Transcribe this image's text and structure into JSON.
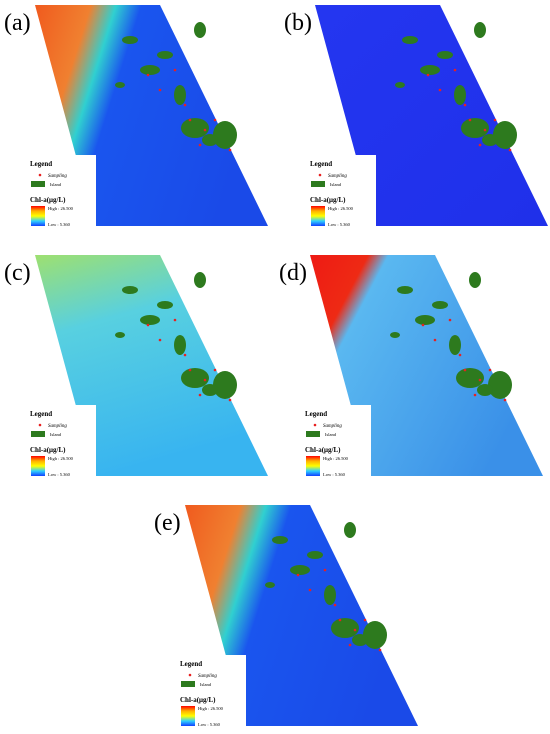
{
  "panels": [
    {
      "label": "(a)",
      "legend": {
        "title": "Legend",
        "sampling": "Sampling",
        "island": "Island",
        "scale_title": "Chl-a(μg/L)",
        "high": "High : 26.500",
        "low": "Low : 5.360"
      }
    },
    {
      "label": "(b)",
      "legend": {
        "title": "Legend",
        "sampling": "Sampling",
        "island": "Island",
        "scale_title": "Chl-a(μg/L)",
        "high": "High : 26.500",
        "low": "Low : 5.360"
      }
    },
    {
      "label": "(c)",
      "legend": {
        "title": "Legend",
        "sampling": "Sampling",
        "island": "Island",
        "scale_title": "Chl-a(μg/L)",
        "high": "High : 26.500",
        "low": "Low : 5.360"
      }
    },
    {
      "label": "(d)",
      "legend": {
        "title": "Legend",
        "sampling": "Sampling",
        "island": "Island",
        "scale_title": "Chl-a(μg/L)",
        "high": "High : 26.500",
        "low": "Low : 5.360"
      }
    },
    {
      "label": "(e)",
      "legend": {
        "title": "Legend",
        "sampling": "Sampling",
        "island": "Island",
        "scale_title": "Chl-a(μg/L)",
        "high": "High : 26.500",
        "low": "Low : 5.360"
      }
    }
  ]
}
